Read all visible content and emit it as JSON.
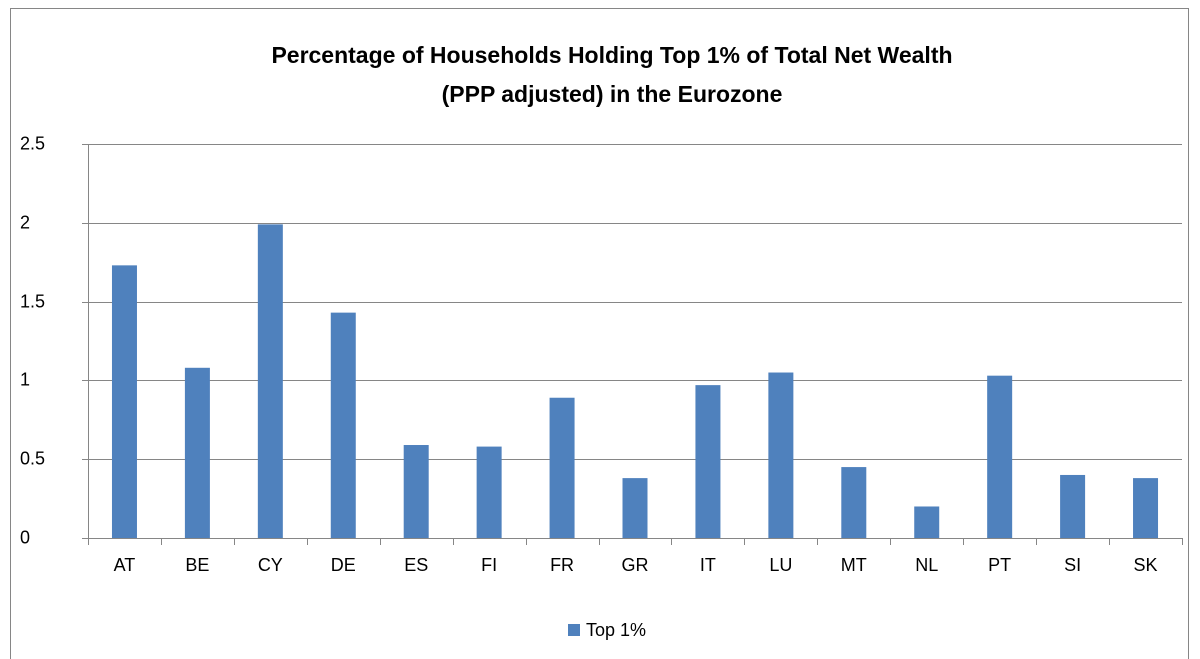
{
  "chart_data": {
    "type": "bar",
    "title": [
      "Percentage of Households Holding Top 1% of Total Net Wealth",
      "(PPP adjusted) in the Eurozone"
    ],
    "categories": [
      "AT",
      "BE",
      "CY",
      "DE",
      "ES",
      "FI",
      "FR",
      "GR",
      "IT",
      "LU",
      "MT",
      "NL",
      "PT",
      "SI",
      "SK"
    ],
    "series": [
      {
        "name": "Top 1%",
        "color": "#4f81bd",
        "values": [
          1.73,
          1.08,
          1.99,
          1.43,
          0.59,
          0.58,
          0.89,
          0.38,
          0.97,
          1.05,
          0.45,
          0.2,
          1.03,
          0.4,
          0.38
        ]
      }
    ],
    "ylim": [
      0,
      2.5
    ],
    "yticks": [
      0,
      0.5,
      1,
      1.5,
      2,
      2.5
    ],
    "grid": true,
    "legend": "bottom"
  }
}
